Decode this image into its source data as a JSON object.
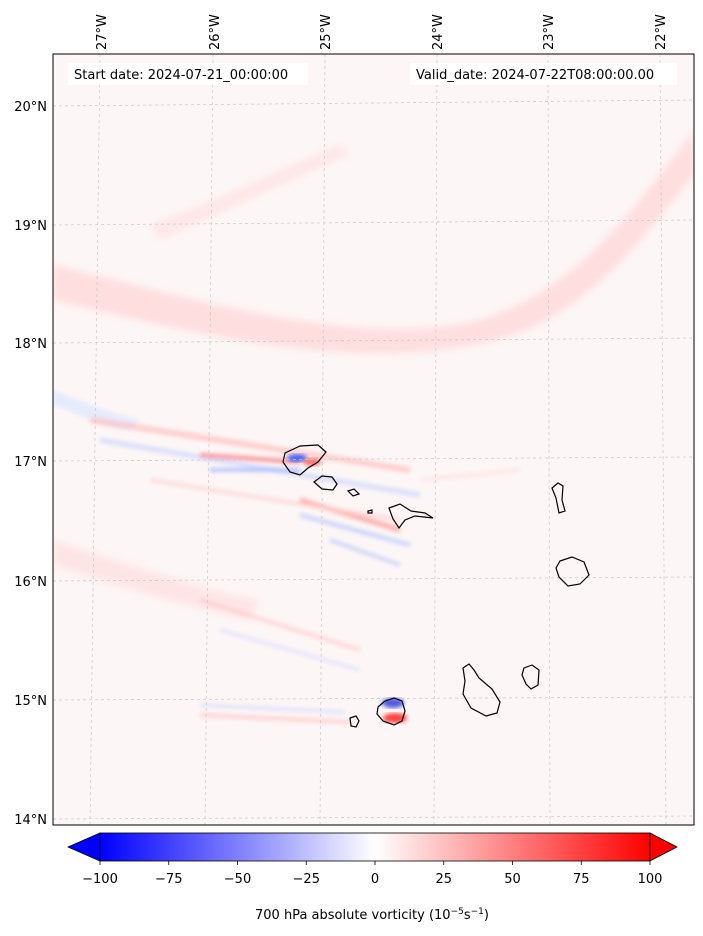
{
  "header": {
    "start_date": "Start date: 2024-07-21_00:00:00",
    "valid_date": "Valid_date: 2024-07-22T08:00:00.00"
  },
  "axes": {
    "lon_ticks": [
      "27°W",
      "26°W",
      "25°W",
      "24°W",
      "23°W",
      "22°W"
    ],
    "lat_ticks": [
      "20°N",
      "19°N",
      "18°N",
      "17°N",
      "16°N",
      "15°N",
      "14°N"
    ]
  },
  "colorbar": {
    "ticks": [
      "−100",
      "−75",
      "−50",
      "−25",
      "0",
      "25",
      "50",
      "75",
      "100"
    ],
    "min": -100,
    "max": 100,
    "label": "700 hPa absolute vorticity (10",
    "label_exp1": "−5",
    "label_mid": "s",
    "label_exp2": "−1",
    "label_end": ")",
    "colors": {
      "negative": "#0000ff",
      "neutral": "#ffffff",
      "positive": "#ff0000"
    }
  },
  "map": {
    "region": "Cape Verde Islands",
    "grid": true
  }
}
